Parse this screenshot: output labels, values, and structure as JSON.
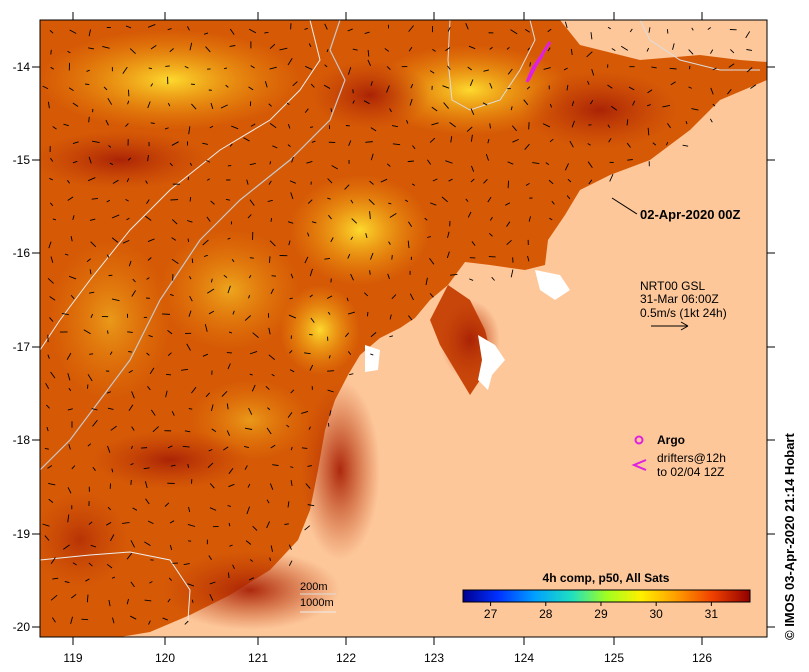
{
  "map": {
    "date_label": "02-Apr-2020 00Z",
    "x_ticks": [
      "119",
      "120",
      "121",
      "122",
      "123",
      "124",
      "125",
      "126"
    ],
    "y_ticks": [
      "-14",
      "-15",
      "-16",
      "-17",
      "-18",
      "-19",
      "-20"
    ],
    "colors": {
      "land": "#fdc79a",
      "ocean_dark": "#b22a06",
      "ocean_mid": "#e06a08",
      "ocean_warm": "#f5a00a",
      "ocean_hot": "#ffd21a",
      "argo": "#e020e0"
    }
  },
  "current_legend": {
    "line1": "NRT00 GSL",
    "line2": "31-Mar 06:00Z",
    "line3": "0.5m/s (1kt 24h)"
  },
  "argo_legend": {
    "label": "Argo",
    "drifters_line1": "drifters@12h",
    "drifters_line2": "to 02/04 12Z"
  },
  "contours": {
    "label1": "200m",
    "label2": "1000m"
  },
  "colorbar": {
    "title": "4h comp, p50, All Sats",
    "ticks": [
      "27",
      "28",
      "29",
      "30",
      "31"
    ],
    "min": 26.5,
    "max": 31.7
  },
  "credit": "© IMOS 03-Apr-2020 21:14 Hobart"
}
